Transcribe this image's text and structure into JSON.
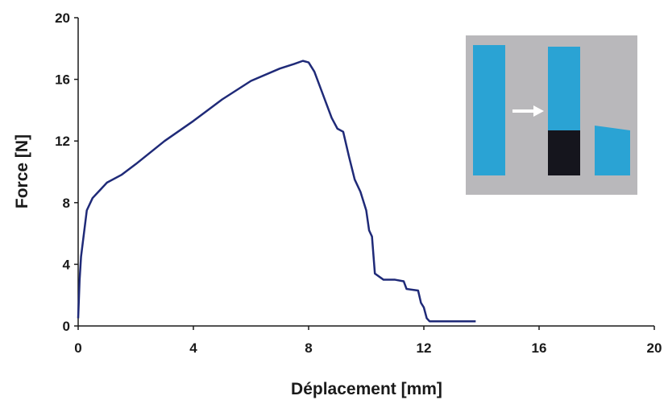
{
  "chart_data": {
    "type": "line",
    "xlabel": "Déplacement [mm]",
    "ylabel": "Force [N]",
    "x": [
      0,
      0.05,
      0.1,
      0.2,
      0.3,
      0.5,
      1,
      1.5,
      2,
      3,
      4,
      5,
      6,
      7,
      7.5,
      7.8,
      8,
      8.2,
      8.5,
      8.8,
      9,
      9.2,
      9.4,
      9.6,
      9.8,
      10,
      10.1,
      10.2,
      10.3,
      10.6,
      11,
      11.3,
      11.4,
      11.8,
      11.9,
      12,
      12.1,
      12.2,
      13,
      13.8
    ],
    "values": [
      0.5,
      3,
      4.5,
      6,
      7.5,
      8.3,
      9.3,
      9.8,
      10.5,
      12,
      13.3,
      14.7,
      15.9,
      16.7,
      17,
      17.2,
      17.1,
      16.5,
      15,
      13.5,
      12.8,
      12.6,
      11,
      9.5,
      8.7,
      7.5,
      6.2,
      5.8,
      3.4,
      3.0,
      3.0,
      2.9,
      2.4,
      2.3,
      1.5,
      1.2,
      0.5,
      0.3,
      0.3,
      0.3
    ],
    "color": "#1f2a78",
    "xlim": [
      0,
      20
    ],
    "xticks": [
      0,
      4,
      8,
      12,
      16,
      20
    ],
    "ylim": [
      0,
      20
    ],
    "yticks": [
      0,
      4,
      8,
      12,
      16,
      20
    ],
    "grid": false
  }
}
